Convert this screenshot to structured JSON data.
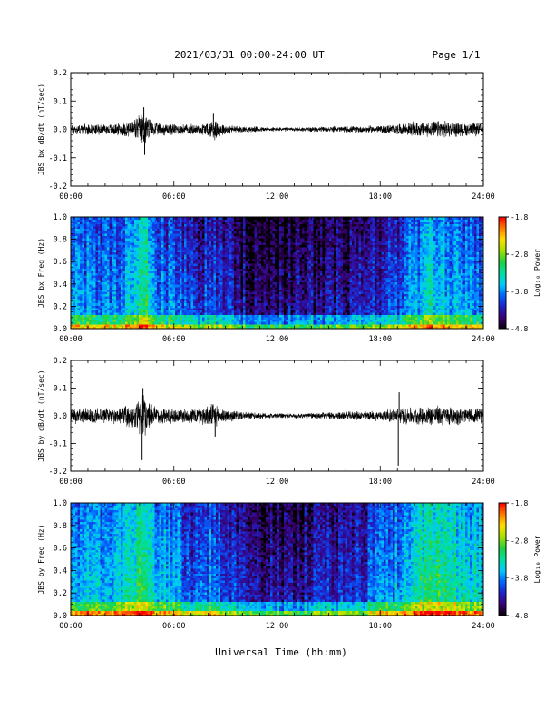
{
  "header": {
    "title": "2021/03/31  00:00-24:00 UT",
    "page": "Page 1/1"
  },
  "xaxis": {
    "label": "Universal Time (hh:mm)",
    "range_hours": [
      0,
      24
    ],
    "ticks": [
      {
        "hour": 0,
        "label": "00:00"
      },
      {
        "hour": 6,
        "label": "06:00"
      },
      {
        "hour": 12,
        "label": "12:00"
      },
      {
        "hour": 18,
        "label": "18:00"
      },
      {
        "hour": 24,
        "label": "24:00"
      }
    ]
  },
  "colorbar": {
    "label": "Log₁₀ Power",
    "range": [
      -4.8,
      -1.8
    ],
    "ticks": [
      {
        "value": -1.8,
        "label": "-1.8"
      },
      {
        "value": -2.8,
        "label": "-2.8"
      },
      {
        "value": -3.8,
        "label": "-3.8"
      },
      {
        "value": -4.8,
        "label": "-4.8"
      }
    ],
    "colors": [
      "#000000",
      "#3a0070",
      "#2020c8",
      "#0064ff",
      "#00c8ff",
      "#00e0a0",
      "#20d040",
      "#a0e000",
      "#ffe000",
      "#ff8000",
      "#ff0000"
    ]
  },
  "chart_data": [
    {
      "type": "line",
      "ylabel": "JBS bx dB/dt (nT/sec)",
      "ylim": [
        -0.2,
        0.2
      ],
      "yticks": [
        {
          "value": 0.2,
          "label": "0.2"
        },
        {
          "value": 0.1,
          "label": "0.1"
        },
        {
          "value": 0.0,
          "label": "0.0"
        },
        {
          "value": -0.1,
          "label": "-0.1"
        },
        {
          "value": -0.2,
          "label": "-0.2"
        }
      ],
      "envelope": {
        "hours": [
          0,
          1,
          2,
          3,
          3.5,
          3.8,
          4.1,
          4.3,
          4.5,
          4.8,
          5,
          6,
          6.5,
          7,
          7.5,
          8,
          8.3,
          8.6,
          9,
          9.5,
          10,
          11,
          12,
          13,
          14,
          15,
          16,
          17,
          18,
          19,
          19.5,
          20,
          20.5,
          21,
          21.5,
          22,
          22.5,
          23,
          24
        ],
        "amplitude": [
          0.02,
          0.02,
          0.02,
          0.025,
          0.035,
          0.045,
          0.06,
          0.075,
          0.05,
          0.03,
          0.025,
          0.022,
          0.02,
          0.02,
          0.022,
          0.03,
          0.045,
          0.03,
          0.02,
          0.015,
          0.012,
          0.01,
          0.008,
          0.008,
          0.009,
          0.01,
          0.012,
          0.013,
          0.015,
          0.02,
          0.025,
          0.03,
          0.028,
          0.03,
          0.035,
          0.03,
          0.028,
          0.025,
          0.025
        ]
      },
      "spikes": [
        {
          "hour": 4.25,
          "value": 0.078
        },
        {
          "hour": 4.3,
          "value": -0.09
        },
        {
          "hour": 8.3,
          "value": 0.055
        }
      ]
    },
    {
      "type": "heatmap",
      "ylabel": "JBS bx Freq (Hz)",
      "ylim": [
        0,
        1.0
      ],
      "yticks": [
        {
          "value": 1.0,
          "label": "1.0"
        },
        {
          "value": 0.8,
          "label": "0.8"
        },
        {
          "value": 0.6,
          "label": "0.6"
        },
        {
          "value": 0.4,
          "label": "0.4"
        },
        {
          "value": 0.2,
          "label": "0.2"
        },
        {
          "value": 0.0,
          "label": "0.0"
        }
      ],
      "zlim": [
        -4.8,
        -1.8
      ],
      "activity_profile": {
        "hours": [
          0,
          1,
          2,
          3,
          4,
          4.2,
          4.5,
          5,
          6,
          6.5,
          7,
          7.5,
          8,
          9,
          10,
          11,
          12,
          13,
          14,
          15,
          16,
          17,
          18,
          19,
          20,
          21,
          22,
          23,
          24
        ],
        "level": [
          -3.7,
          -3.7,
          -3.8,
          -3.6,
          -3.3,
          -2.8,
          -3.4,
          -3.7,
          -3.8,
          -3.9,
          -4.0,
          -4.2,
          -3.9,
          -4.1,
          -4.3,
          -4.4,
          -4.4,
          -4.4,
          -4.3,
          -4.3,
          -4.3,
          -4.2,
          -4.1,
          -3.9,
          -3.6,
          -3.4,
          -3.5,
          -3.6,
          -3.7
        ]
      }
    },
    {
      "type": "line",
      "ylabel": "JBS by dB/dt (nT/sec)",
      "ylim": [
        -0.2,
        0.2
      ],
      "yticks": [
        {
          "value": 0.2,
          "label": "0.2"
        },
        {
          "value": 0.1,
          "label": "0.1"
        },
        {
          "value": 0.0,
          "label": "0.0"
        },
        {
          "value": -0.1,
          "label": "-0.1"
        },
        {
          "value": -0.2,
          "label": "-0.2"
        }
      ],
      "envelope": {
        "hours": [
          0,
          1,
          2,
          3,
          3.5,
          3.8,
          4.1,
          4.3,
          4.5,
          4.8,
          5,
          6,
          6.5,
          7,
          7.5,
          8,
          8.3,
          8.6,
          9,
          9.5,
          10,
          11,
          12,
          13,
          14,
          15,
          16,
          17,
          18,
          19,
          19.5,
          20,
          20.5,
          21,
          21.5,
          22,
          22.5,
          23,
          24
        ],
        "amplitude": [
          0.03,
          0.03,
          0.03,
          0.035,
          0.045,
          0.06,
          0.08,
          0.09,
          0.06,
          0.04,
          0.035,
          0.03,
          0.03,
          0.03,
          0.035,
          0.04,
          0.05,
          0.035,
          0.025,
          0.02,
          0.015,
          0.012,
          0.01,
          0.01,
          0.012,
          0.014,
          0.016,
          0.018,
          0.02,
          0.03,
          0.035,
          0.035,
          0.035,
          0.04,
          0.04,
          0.035,
          0.035,
          0.03,
          0.03
        ]
      },
      "spikes": [
        {
          "hour": 4.2,
          "value": 0.1
        },
        {
          "hour": 4.15,
          "value": -0.16
        },
        {
          "hour": 8.4,
          "value": -0.075
        },
        {
          "hour": 19.1,
          "value": 0.085
        },
        {
          "hour": 19.05,
          "value": -0.18
        }
      ]
    },
    {
      "type": "heatmap",
      "ylabel": "JBS by Freq (Hz)",
      "ylim": [
        0,
        1.0
      ],
      "yticks": [
        {
          "value": 1.0,
          "label": "1.0"
        },
        {
          "value": 0.8,
          "label": "0.8"
        },
        {
          "value": 0.6,
          "label": "0.6"
        },
        {
          "value": 0.4,
          "label": "0.4"
        },
        {
          "value": 0.2,
          "label": "0.2"
        },
        {
          "value": 0.0,
          "label": "0.0"
        }
      ],
      "zlim": [
        -4.8,
        -1.8
      ],
      "activity_profile": {
        "hours": [
          0,
          1,
          2,
          3,
          4,
          4.2,
          4.5,
          5,
          6,
          6.5,
          7,
          7.5,
          8,
          9,
          10,
          11,
          12,
          13,
          14,
          15,
          16,
          17,
          18,
          19,
          20,
          21,
          22,
          23,
          24
        ],
        "level": [
          -3.5,
          -3.5,
          -3.6,
          -3.4,
          -3.1,
          -2.7,
          -3.2,
          -3.5,
          -3.6,
          -3.8,
          -3.9,
          -4.0,
          -3.7,
          -3.9,
          -4.1,
          -4.2,
          -4.3,
          -4.3,
          -4.2,
          -4.1,
          -4.1,
          -4.0,
          -3.8,
          -3.6,
          -3.3,
          -3.1,
          -3.2,
          -3.3,
          -3.4
        ]
      }
    }
  ]
}
